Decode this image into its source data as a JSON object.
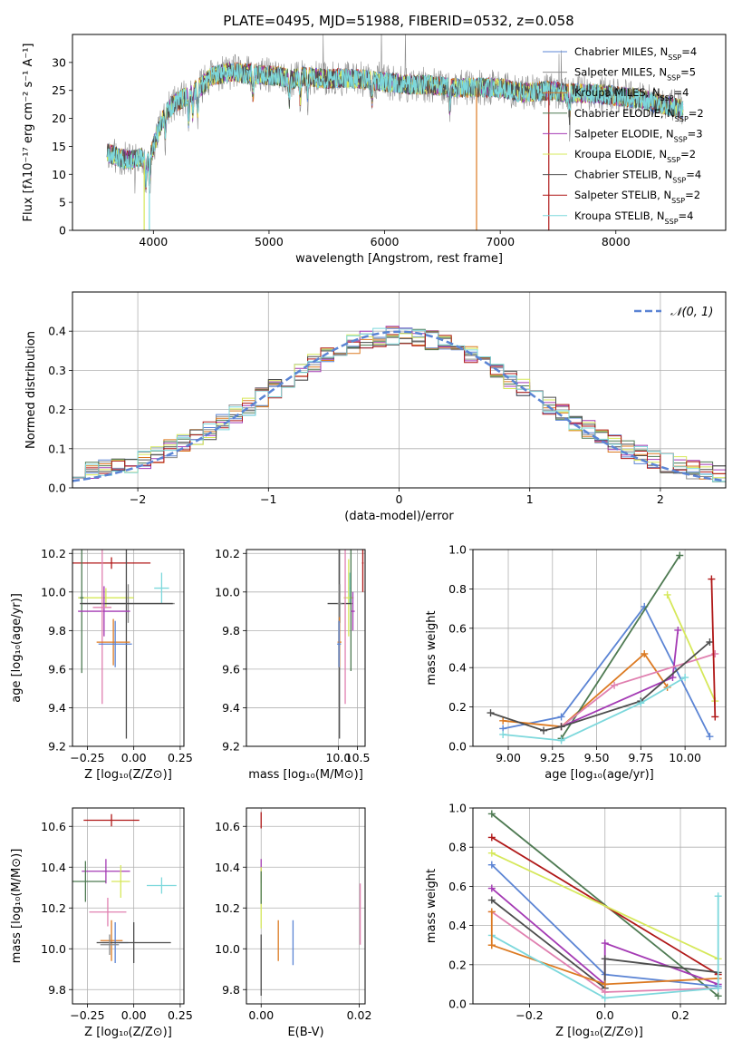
{
  "figure": {
    "title": "PLATE=0495, MJD=51988, FIBERID=0532, z=0.058"
  },
  "colors": {
    "chabrier_miles": "#5b84d4",
    "salpeter_miles": "#8c8c8c",
    "kroupa_miles": "#dc7a22",
    "chabrier_elodie": "#4e7a52",
    "salpeter_elodie": "#a43ab4",
    "kroupa_elodie": "#d6e85a",
    "chabrier_stelib": "#4d4d4d",
    "salpeter_stelib": "#b01818",
    "kroupa_stelib": "#7dd8dc",
    "pink": "#e080b0",
    "gaussian": "#5b84d4"
  },
  "chart_data": [
    {
      "id": "spectrum",
      "type": "line",
      "xlabel": "wavelength [Angstrom, rest frame]",
      "ylabel": "Flux [fλ10⁻¹⁷ erg cm⁻² s⁻¹ A⁻¹]",
      "xlim": [
        3300,
        8950
      ],
      "ylim": [
        0,
        35
      ],
      "xticks": [
        4000,
        5000,
        6000,
        7000,
        8000
      ],
      "yticks": [
        0,
        5,
        10,
        15,
        20,
        25,
        30
      ],
      "legend_position": "top-right",
      "legend": [
        {
          "name": "Chabrier MILES, N_SSP=4",
          "label": "Chabrier MILES, N",
          "sub": "SSP",
          "tail": "=4",
          "color_key": "chabrier_miles"
        },
        {
          "name": "Salpeter MILES, N_SSP=5",
          "label": "Salpeter MILES, N",
          "sub": "SSP",
          "tail": "=5",
          "color_key": "salpeter_miles"
        },
        {
          "name": "Kroupa MILES, N_SSP=4",
          "label": "Kroupa MILES, N",
          "sub": "SSP",
          "tail": "=4",
          "color_key": "kroupa_miles"
        },
        {
          "name": "Chabrier ELODIE, N_SSP=2",
          "label": "Chabrier ELODIE, N",
          "sub": "SSP",
          "tail": "=2",
          "color_key": "chabrier_elodie"
        },
        {
          "name": "Salpeter ELODIE, N_SSP=3",
          "label": "Salpeter ELODIE, N",
          "sub": "SSP",
          "tail": "=3",
          "color_key": "salpeter_elodie"
        },
        {
          "name": "Kroupa ELODIE, N_SSP=2",
          "label": "Kroupa ELODIE, N",
          "sub": "SSP",
          "tail": "=2",
          "color_key": "kroupa_elodie"
        },
        {
          "name": "Chabrier STELIB, N_SSP=4",
          "label": "Chabrier STELIB, N",
          "sub": "SSP",
          "tail": "=4",
          "color_key": "chabrier_stelib"
        },
        {
          "name": "Salpeter STELIB, N_SSP=2",
          "label": "Salpeter STELIB, N",
          "sub": "SSP",
          "tail": "=2",
          "color_key": "salpeter_stelib"
        },
        {
          "name": "Kroupa STELIB, N_SSP=4",
          "label": "Kroupa STELIB, N",
          "sub": "SSP",
          "tail": "=4",
          "color_key": "kroupa_stelib"
        }
      ],
      "continuum": [
        [
          3600,
          14
        ],
        [
          3700,
          13
        ],
        [
          3800,
          12.5
        ],
        [
          3900,
          13
        ],
        [
          3950,
          12
        ],
        [
          4000,
          15
        ],
        [
          4050,
          18
        ],
        [
          4100,
          21
        ],
        [
          4200,
          23
        ],
        [
          4300,
          24
        ],
        [
          4400,
          25.5
        ],
        [
          4500,
          27.5
        ],
        [
          4600,
          28
        ],
        [
          4700,
          28.3
        ],
        [
          4800,
          28
        ],
        [
          4900,
          27.8
        ],
        [
          5000,
          27.7
        ],
        [
          5100,
          27.5
        ],
        [
          5200,
          27
        ],
        [
          5300,
          27.5
        ],
        [
          5400,
          27.3
        ],
        [
          5500,
          27
        ],
        [
          5600,
          27.2
        ],
        [
          5800,
          27
        ],
        [
          6000,
          26.5
        ],
        [
          6200,
          26
        ],
        [
          6400,
          26
        ],
        [
          6600,
          25.5
        ],
        [
          6800,
          25.5
        ],
        [
          7000,
          25.5
        ],
        [
          7200,
          24.5
        ],
        [
          7400,
          25
        ],
        [
          7600,
          24.5
        ],
        [
          7800,
          24.5
        ],
        [
          8000,
          24
        ],
        [
          8200,
          23.5
        ],
        [
          8400,
          22.5
        ],
        [
          8500,
          22
        ],
        [
          8580,
          21.5
        ]
      ],
      "absorption_lines": [
        3934,
        3969,
        4102,
        4304,
        4341,
        4383,
        4861,
        5175,
        5270,
        5335,
        5890,
        6563,
        7600
      ],
      "spikes": [
        {
          "color_key": "kroupa_elodie",
          "x": 3920,
          "y": 0
        },
        {
          "color_key": "kroupa_stelib",
          "x": 3965,
          "y": 0
        },
        {
          "color_key": "kroupa_miles",
          "x": 6795,
          "y": 0
        },
        {
          "color_key": "salpeter_stelib",
          "x": 7420,
          "y": 0
        }
      ]
    },
    {
      "id": "residual_hist",
      "type": "histogram",
      "xlabel": "(data-model)/error",
      "ylabel": "Normed distribution",
      "xlim": [
        -2.5,
        2.5
      ],
      "ylim": [
        0,
        0.5
      ],
      "xticks": [
        -2,
        -1,
        0,
        1,
        2
      ],
      "yticks": [
        0.0,
        0.1,
        0.2,
        0.3,
        0.4
      ],
      "bin_width": 0.1,
      "legend_position": "top-right",
      "gaussian_label": "𝒩(0, 1)",
      "series_color_keys": [
        "chabrier_miles",
        "salpeter_miles",
        "kroupa_miles",
        "chabrier_elodie",
        "salpeter_elodie",
        "kroupa_elodie",
        "chabrier_stelib",
        "salpeter_stelib",
        "kroupa_stelib"
      ]
    },
    {
      "id": "age_vs_Z",
      "type": "scatter",
      "xlabel": "Z [log₁₀(Z/Z⊙)]",
      "ylabel": "age  [log₁₀(age/yr)]",
      "xlim": [
        -0.33,
        0.27
      ],
      "ylim": [
        9.2,
        10.22
      ],
      "xticks": [
        -0.25,
        0.0,
        0.25
      ],
      "yticks": [
        9.2,
        9.4,
        9.6,
        9.8,
        10.0,
        10.2
      ],
      "points": [
        {
          "color_key": "salpeter_stelib",
          "x": -0.12,
          "xerr": 0.21,
          "y": 10.15,
          "yerr": 0.03
        },
        {
          "color_key": "kroupa_stelib",
          "x": 0.15,
          "xerr": 0.04,
          "y": 10.02,
          "yerr": 0.08
        },
        {
          "color_key": "kroupa_elodie",
          "x": -0.15,
          "xerr": 0.15,
          "y": 9.97,
          "yerr": 0.05
        },
        {
          "color_key": "chabrier_elodie",
          "x": -0.28,
          "xerr": 0.01,
          "y": 9.97,
          "yerr": 0.39
        },
        {
          "color_key": "salpeter_miles",
          "x": -0.03,
          "xerr": 0.25,
          "y": 9.94,
          "yerr": 0.1
        },
        {
          "color_key": "chabrier_stelib",
          "x": -0.04,
          "xerr": 0.25,
          "y": 9.94,
          "yerr": 0.7
        },
        {
          "color_key": "salpeter_elodie",
          "x": -0.16,
          "xerr": 0.14,
          "y": 9.9,
          "yerr": 0.13
        },
        {
          "color_key": "pink",
          "x": -0.17,
          "xerr": 0.05,
          "y": 9.92,
          "yerr": 0.5
        },
        {
          "color_key": "kroupa_miles",
          "x": -0.11,
          "xerr": 0.09,
          "y": 9.74,
          "yerr": 0.12
        },
        {
          "color_key": "chabrier_miles",
          "x": -0.1,
          "xerr": 0.09,
          "y": 9.73,
          "yerr": 0.12
        }
      ]
    },
    {
      "id": "age_vs_mass",
      "type": "scatter",
      "xlabel": "mass [log₁₀(M/M⊙)]",
      "ylabel": "",
      "xlim": [
        7.6,
        10.7
      ],
      "ylim": [
        9.2,
        10.22
      ],
      "xticks": [
        10.0,
        10.5
      ],
      "yticks": [
        9.2,
        9.4,
        9.6,
        9.8,
        10.0,
        10.2
      ],
      "points": [
        {
          "color_key": "salpeter_stelib",
          "x": 10.64,
          "xerr": 0.02,
          "y": 10.15,
          "yerr": 0.15
        },
        {
          "color_key": "kroupa_stelib",
          "x": 10.3,
          "xerr": 0.04,
          "y": 10.02,
          "yerr": 0.08
        },
        {
          "color_key": "kroupa_elodie",
          "x": 10.27,
          "xerr": 0.13,
          "y": 9.97,
          "yerr": 0.2
        },
        {
          "color_key": "chabrier_elodie",
          "x": 10.33,
          "xerr": 0.03,
          "y": 9.94,
          "yerr": 0.35
        },
        {
          "color_key": "chabrier_stelib",
          "x": 10.03,
          "xerr": 0.31,
          "y": 9.94,
          "yerr": 0.7
        },
        {
          "color_key": "salpeter_miles",
          "x": 10.04,
          "xerr": 0.06,
          "y": 9.94,
          "yerr": 0.1
        },
        {
          "color_key": "salpeter_elodie",
          "x": 10.38,
          "xerr": 0.05,
          "y": 9.9,
          "yerr": 0.1
        },
        {
          "color_key": "pink",
          "x": 10.18,
          "xerr": 0.01,
          "y": 9.92,
          "yerr": 0.5
        },
        {
          "color_key": "kroupa_miles",
          "x": 10.03,
          "xerr": 0.05,
          "y": 9.74,
          "yerr": 0.13
        },
        {
          "color_key": "chabrier_miles",
          "x": 10.02,
          "xerr": 0.05,
          "y": 9.73,
          "yerr": 0.12
        }
      ]
    },
    {
      "id": "weight_vs_age",
      "type": "line",
      "xlabel": "age  [log₁₀(age/yr)]",
      "ylabel": "mass weight",
      "xlim": [
        8.8,
        10.23
      ],
      "ylim": [
        0,
        1.0
      ],
      "xticks": [
        9.0,
        9.25,
        9.5,
        9.75,
        10.0
      ],
      "yticks": [
        0.0,
        0.2,
        0.4,
        0.6,
        0.8,
        1.0
      ],
      "series": [
        {
          "color_key": "chabrier_miles",
          "x": [
            8.97,
            9.3,
            9.77,
            10.14
          ],
          "y": [
            0.09,
            0.15,
            0.71,
            0.05
          ]
        },
        {
          "color_key": "kroupa_miles",
          "x": [
            8.97,
            9.3,
            9.77,
            9.9
          ],
          "y": [
            0.13,
            0.1,
            0.47,
            0.3
          ]
        },
        {
          "color_key": "chabrier_elodie",
          "x": [
            9.3,
            9.97
          ],
          "y": [
            0.04,
            0.97
          ]
        },
        {
          "color_key": "kroupa_elodie",
          "x": [
            9.9,
            10.17
          ],
          "y": [
            0.77,
            0.23
          ]
        },
        {
          "color_key": "salpeter_elodie",
          "x": [
            9.3,
            9.93,
            9.96
          ],
          "y": [
            0.1,
            0.35,
            0.59
          ]
        },
        {
          "color_key": "pink",
          "x": [
            9.3,
            9.6,
            10.17
          ],
          "y": [
            0.1,
            0.31,
            0.47
          ]
        },
        {
          "color_key": "chabrier_stelib",
          "x": [
            8.9,
            9.2,
            9.3,
            9.75,
            10.14
          ],
          "y": [
            0.17,
            0.08,
            0.1,
            0.23,
            0.53
          ]
        },
        {
          "color_key": "salpeter_stelib",
          "x": [
            10.15,
            10.17
          ],
          "y": [
            0.85,
            0.15
          ]
        },
        {
          "color_key": "kroupa_stelib",
          "x": [
            8.97,
            9.3,
            9.75,
            10.0
          ],
          "y": [
            0.06,
            0.03,
            0.22,
            0.35
          ]
        }
      ]
    },
    {
      "id": "mass_vs_Z",
      "type": "scatter",
      "xlabel": "Z [log₁₀(Z/Z⊙)]",
      "ylabel": "mass [log₁₀(M/M⊙)]",
      "xlim": [
        -0.33,
        0.27
      ],
      "ylim": [
        9.73,
        10.69
      ],
      "xticks": [
        -0.25,
        0.0,
        0.25
      ],
      "yticks": [
        9.8,
        10.0,
        10.2,
        10.4,
        10.6
      ],
      "points": [
        {
          "color_key": "salpeter_stelib",
          "x": -0.12,
          "xerr": 0.15,
          "y": 10.63,
          "yerr": 0.03
        },
        {
          "color_key": "salpeter_elodie",
          "x": -0.15,
          "xerr": 0.13,
          "y": 10.38,
          "yerr": 0.06
        },
        {
          "color_key": "kroupa_elodie",
          "x": -0.07,
          "xerr": 0.05,
          "y": 10.33,
          "yerr": 0.08
        },
        {
          "color_key": "chabrier_elodie",
          "x": -0.26,
          "xerr": 0.11,
          "y": 10.33,
          "yerr": 0.1
        },
        {
          "color_key": "kroupa_stelib",
          "x": 0.15,
          "xerr": 0.08,
          "y": 10.31,
          "yerr": 0.04
        },
        {
          "color_key": "pink",
          "x": -0.14,
          "xerr": 0.1,
          "y": 10.18,
          "yerr": 0.07
        },
        {
          "color_key": "kroupa_miles",
          "x": -0.12,
          "xerr": 0.06,
          "y": 10.04,
          "yerr": 0.1
        },
        {
          "color_key": "chabrier_miles",
          "x": -0.1,
          "xerr": 0.07,
          "y": 10.03,
          "yerr": 0.1
        },
        {
          "color_key": "chabrier_stelib",
          "x": 0.0,
          "xerr": 0.2,
          "y": 10.03,
          "yerr": 0.1
        },
        {
          "color_key": "salpeter_miles",
          "x": -0.13,
          "xerr": 0.05,
          "y": 10.02,
          "yerr": 0.05
        }
      ]
    },
    {
      "id": "mass_vs_ebv",
      "type": "scatter",
      "xlabel": "E(B-V)",
      "ylabel": "",
      "xlim": [
        -0.003,
        0.0212
      ],
      "ylim": [
        9.73,
        10.69
      ],
      "xticks": [
        0.0,
        0.02
      ],
      "yticks": [
        9.8,
        10.0,
        10.2,
        10.4,
        10.6
      ],
      "points": [
        {
          "color_key": "salpeter_stelib",
          "x": 0.0,
          "xerr": 0.0,
          "y": 10.63,
          "yerr": 0.04
        },
        {
          "color_key": "salpeter_elodie",
          "x": 0.0,
          "xerr": 0.0,
          "y": 10.38,
          "yerr": 0.06
        },
        {
          "color_key": "kroupa_elodie",
          "x": 0.0,
          "xerr": 0.0,
          "y": 10.25,
          "yerr": 0.15
        },
        {
          "color_key": "chabrier_elodie",
          "x": 0.0,
          "xerr": 0.0,
          "y": 10.3,
          "yerr": 0.08
        },
        {
          "color_key": "kroupa_miles",
          "x": 0.0035,
          "xerr": 0.0,
          "y": 10.04,
          "yerr": 0.1
        },
        {
          "color_key": "chabrier_miles",
          "x": 0.0065,
          "xerr": 0.0,
          "y": 10.03,
          "yerr": 0.11
        },
        {
          "color_key": "pink",
          "x": 0.0202,
          "xerr": 0.0,
          "y": 10.17,
          "yerr": 0.15
        },
        {
          "color_key": "chabrier_stelib",
          "x": 0.0,
          "xerr": 0.0,
          "y": 9.92,
          "yerr": 0.15
        }
      ]
    },
    {
      "id": "weight_vs_Z",
      "type": "line",
      "xlabel": "Z [log₁₀(Z/Z⊙)]",
      "ylabel": "mass weight",
      "xlim": [
        -0.35,
        0.32
      ],
      "ylim": [
        0,
        1.0
      ],
      "xticks": [
        -0.2,
        0.0,
        0.2
      ],
      "yticks": [
        0.0,
        0.2,
        0.4,
        0.6,
        0.8,
        1.0
      ],
      "series": [
        {
          "color_key": "chabrier_elodie",
          "x": [
            -0.3,
            0.3
          ],
          "y": [
            0.97,
            0.04
          ]
        },
        {
          "color_key": "salpeter_stelib",
          "x": [
            -0.3,
            0.3
          ],
          "y": [
            0.85,
            0.15
          ]
        },
        {
          "color_key": "kroupa_elodie",
          "x": [
            -0.3,
            0.3
          ],
          "y": [
            0.77,
            0.23
          ]
        },
        {
          "color_key": "chabrier_miles",
          "x": [
            -0.3,
            0.0,
            0.3
          ],
          "y": [
            0.71,
            0.15,
            0.09
          ]
        },
        {
          "color_key": "salpeter_elodie",
          "x": [
            -0.3,
            0.0,
            0.0,
            0.3
          ],
          "y": [
            0.59,
            0.1,
            0.31,
            0.1
          ]
        },
        {
          "color_key": "chabrier_stelib",
          "x": [
            -0.3,
            0.0,
            0.0,
            0.3
          ],
          "y": [
            0.53,
            0.08,
            0.23,
            0.16
          ]
        },
        {
          "color_key": "pink",
          "x": [
            -0.3,
            0.0,
            0.3
          ],
          "y": [
            0.47,
            0.06,
            0.08
          ]
        },
        {
          "color_key": "kroupa_miles",
          "x": [
            -0.3,
            0.0,
            0.3
          ],
          "y": [
            0.3,
            0.1,
            0.13
          ]
        },
        {
          "color_key": "kroupa_stelib",
          "x": [
            -0.3,
            0.0,
            0.3,
            0.3
          ],
          "y": [
            0.35,
            0.03,
            0.08,
            0.55
          ]
        },
        {
          "color_key": "kroupa_miles",
          "x": [
            -0.3,
            -0.3
          ],
          "y": [
            0.47,
            0.3
          ]
        }
      ]
    }
  ]
}
